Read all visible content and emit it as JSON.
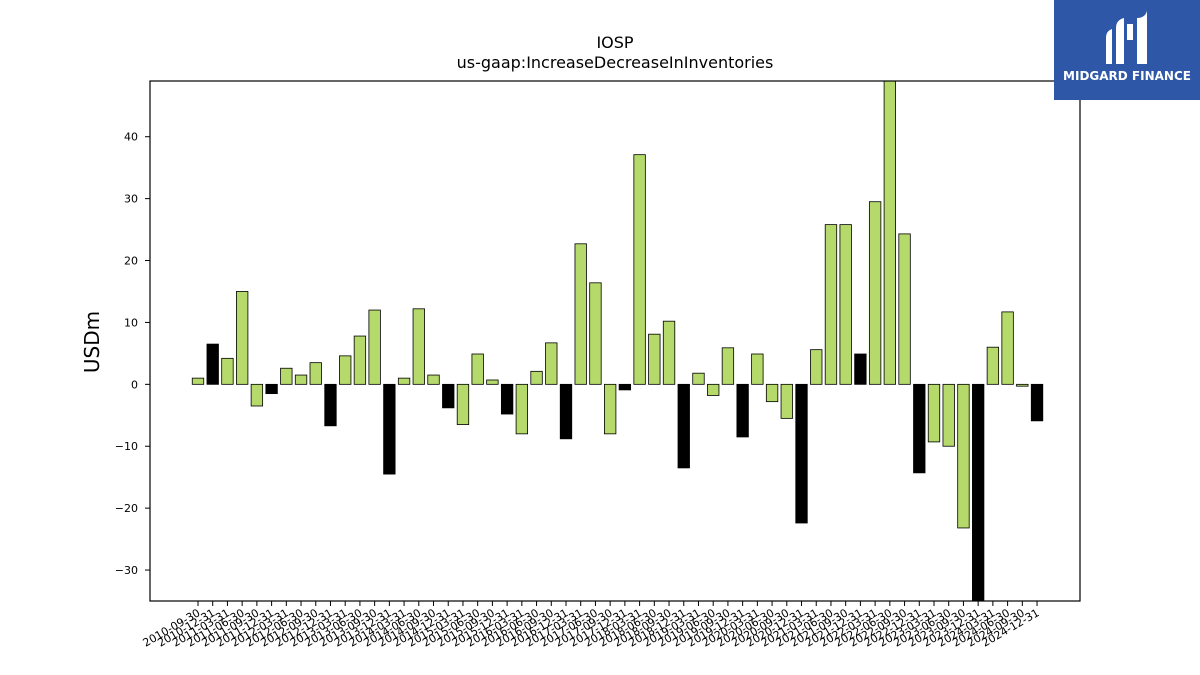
{
  "brand": {
    "name": "MIDGARD FINANCE",
    "background": "#2e57a8",
    "text_color": "#ffffff",
    "icon": "stylized-m-logo-icon"
  },
  "colors": {
    "positive": "#b5d96b",
    "negative": "#000000",
    "bar_edge": "#000000"
  },
  "chart_data": {
    "type": "bar",
    "title": "IOSP",
    "subtitle": "us-gaap:IncreaseDecreaseInInventories",
    "xlabel": "",
    "ylabel": "USDm",
    "ylim": [
      -35,
      49
    ],
    "yticks": [
      -30,
      -20,
      -10,
      0,
      10,
      20,
      30,
      40
    ],
    "grid": false,
    "legend": "none",
    "categories": [
      "2010-09-30",
      "2010-12-31",
      "2011-03-31",
      "2011-06-30",
      "2011-09-30",
      "2011-12-31",
      "2012-03-31",
      "2012-06-30",
      "2012-09-30",
      "2012-12-31",
      "2013-03-31",
      "2013-06-30",
      "2013-09-30",
      "2013-12-31",
      "2014-03-31",
      "2014-06-30",
      "2014-09-30",
      "2014-12-31",
      "2015-03-31",
      "2015-06-30",
      "2015-09-30",
      "2015-12-31",
      "2016-03-31",
      "2016-06-30",
      "2016-09-30",
      "2016-12-31",
      "2017-03-31",
      "2017-06-30",
      "2017-09-30",
      "2017-12-31",
      "2018-03-31",
      "2018-06-30",
      "2018-09-30",
      "2018-12-31",
      "2019-03-31",
      "2019-06-30",
      "2019-09-30",
      "2019-12-31",
      "2020-03-31",
      "2020-06-30",
      "2020-09-30",
      "2020-12-31",
      "2021-03-31",
      "2021-06-30",
      "2021-09-30",
      "2021-12-31",
      "2022-03-31",
      "2022-06-30",
      "2022-09-30",
      "2022-12-31",
      "2023-03-31",
      "2023-06-30",
      "2023-09-30",
      "2023-12-31",
      "2024-03-31",
      "2024-06-30",
      "2024-09-30",
      "2024-12-31"
    ],
    "values": [
      1.0,
      6.5,
      4.2,
      15.0,
      -3.5,
      -1.5,
      2.6,
      1.5,
      3.5,
      -6.7,
      4.6,
      7.8,
      12.0,
      -14.5,
      1.0,
      12.2,
      1.5,
      -3.8,
      -6.5,
      4.9,
      0.7,
      -4.8,
      -8.0,
      2.1,
      6.7,
      -8.8,
      22.7,
      16.4,
      -8.0,
      -0.9,
      37.1,
      8.1,
      10.2,
      -13.5,
      1.8,
      -1.8,
      5.9,
      -8.5,
      4.9,
      -2.8,
      -5.5,
      -22.4,
      5.6,
      25.8,
      25.8,
      4.9,
      29.5,
      49.0,
      24.3,
      -14.3,
      -9.3,
      -10.0,
      -23.2,
      -35.0,
      6.0,
      11.7,
      -0.3,
      -5.9
    ],
    "bar_colors": [
      "g",
      "k",
      "g",
      "g",
      "g",
      "k",
      "g",
      "g",
      "g",
      "k",
      "g",
      "g",
      "g",
      "k",
      "g",
      "g",
      "g",
      "k",
      "g",
      "g",
      "g",
      "k",
      "g",
      "g",
      "g",
      "k",
      "g",
      "g",
      "g",
      "k",
      "g",
      "g",
      "g",
      "k",
      "g",
      "g",
      "g",
      "k",
      "g",
      "g",
      "g",
      "k",
      "g",
      "g",
      "g",
      "k",
      "g",
      "g",
      "g",
      "k",
      "g",
      "g",
      "g",
      "k",
      "g",
      "g",
      "g",
      "k"
    ]
  }
}
